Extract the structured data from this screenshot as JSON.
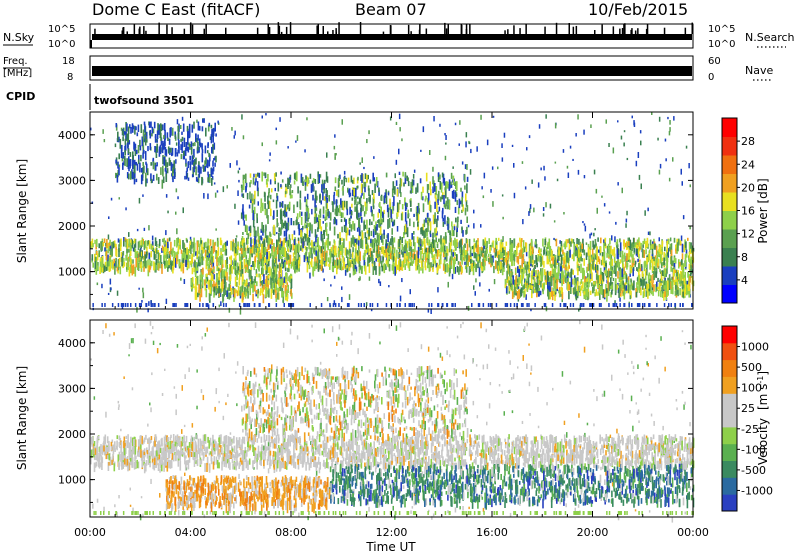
{
  "header": {
    "station": "Dome C East (fitACF)",
    "beam": "Beam 07",
    "date": "10/Feb/2015"
  },
  "noise_panel": {
    "left_label": "N.Sky",
    "right_label": "N.Search",
    "left_ticks": [
      "10^5",
      "10^0"
    ],
    "right_ticks": [
      "10^5",
      "10^0"
    ]
  },
  "freq_panel": {
    "left_label_top": "Freq.",
    "left_label_bottom": "[MHz]",
    "right_label": "Nave",
    "left_ticks": [
      "18",
      "8"
    ],
    "right_ticks": [
      "60",
      "0"
    ]
  },
  "cpid": {
    "label": "CPID",
    "value": "twofsound 3501"
  },
  "chart_data": [
    {
      "type": "heatmap",
      "name": "power",
      "ylabel": "Slant Range [km]",
      "ylim": [
        180,
        4500
      ],
      "y_ticks": [
        "4000",
        "3000",
        "2000",
        "1000"
      ],
      "x_ticks": [
        "00:00",
        "04:00",
        "08:00",
        "12:00",
        "16:00",
        "20:00",
        "00:00"
      ],
      "xlim_hours": [
        0,
        24
      ],
      "colorbar": {
        "label": "Power [dB]",
        "ticks": [
          "28",
          "24",
          "20",
          "16",
          "12",
          "8",
          "4"
        ],
        "colors": [
          "#0000ff",
          "#1a3fbf",
          "#3a8050",
          "#5aa050",
          "#8ed04a",
          "#e8e020",
          "#f0a020",
          "#f07010",
          "#f03010",
          "#ff0000"
        ]
      },
      "bands": [
        {
          "x_start": 0.0,
          "x_end": 24.0,
          "y_low": 1100,
          "y_high": 1750,
          "level": "high"
        },
        {
          "x_start": 4.0,
          "x_end": 8.0,
          "y_low": 500,
          "y_high": 1100,
          "level": "high"
        },
        {
          "x_start": 16.5,
          "x_end": 24.0,
          "y_low": 550,
          "y_high": 1100,
          "level": "high"
        },
        {
          "x_start": 6.0,
          "x_end": 15.0,
          "y_low": 1700,
          "y_high": 3200,
          "level": "mid"
        },
        {
          "x_start": 1.0,
          "x_end": 5.0,
          "y_low": 3000,
          "y_high": 4300,
          "level": "low"
        }
      ]
    },
    {
      "type": "heatmap",
      "name": "velocity",
      "ylabel": "Slant Range [km]",
      "ylim": [
        180,
        4500
      ],
      "y_ticks": [
        "4000",
        "3000",
        "2000",
        "1000"
      ],
      "x_ticks": [
        "00:00",
        "04:00",
        "08:00",
        "12:00",
        "16:00",
        "20:00",
        "00:00"
      ],
      "xlim_hours": [
        0,
        24
      ],
      "xlabel": "Time UT",
      "colorbar": {
        "label": "Velocity",
        "unit": "[m s",
        "unit_exp": "-1",
        "unit_close": "]",
        "ticks": [
          "1000",
          "500",
          "100",
          "25",
          "-25",
          "-100",
          "-500",
          "-1000"
        ],
        "colors": [
          "#2a40c0",
          "#2a6aa0",
          "#3a8a60",
          "#5ab050",
          "#8ed04a",
          "#c8c8c8",
          "#c8c8c8",
          "#f0a020",
          "#f08010",
          "#f05010",
          "#ff0000"
        ]
      },
      "bands": [
        {
          "x_start": 0.0,
          "x_end": 24.0,
          "y_low": 1350,
          "y_high": 2000,
          "level": "grey"
        },
        {
          "x_start": 9.5,
          "x_end": 24.0,
          "y_low": 550,
          "y_high": 1350,
          "level": "green"
        },
        {
          "x_start": 3.0,
          "x_end": 9.5,
          "y_low": 450,
          "y_high": 1100,
          "level": "orange"
        },
        {
          "x_start": 6.0,
          "x_end": 15.0,
          "y_low": 2000,
          "y_high": 3500,
          "level": "mixed"
        }
      ]
    }
  ]
}
